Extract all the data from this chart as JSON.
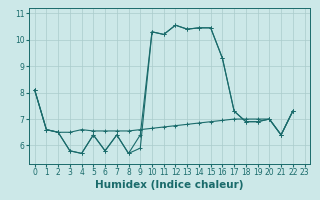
{
  "title": "",
  "xlabel": "Humidex (Indice chaleur)",
  "ylabel": "",
  "bg_color": "#cce8e8",
  "grid_color": "#aacccc",
  "line_color": "#1a6b6b",
  "series": [
    [
      8.1,
      6.6,
      6.5,
      5.8,
      5.7,
      6.4,
      5.8,
      6.4,
      5.7,
      5.9,
      10.3,
      10.2,
      10.55,
      10.4,
      10.45,
      10.45,
      9.3,
      7.3,
      6.9,
      6.9,
      7.0,
      6.4,
      7.3
    ],
    [
      8.1,
      6.6,
      6.5,
      5.8,
      5.7,
      6.4,
      5.8,
      6.4,
      5.7,
      6.4,
      10.3,
      10.2,
      10.55,
      10.4,
      10.45,
      10.45,
      9.3,
      7.3,
      6.9,
      6.9,
      7.0,
      6.4,
      7.3
    ],
    [
      8.1,
      6.6,
      6.5,
      6.5,
      6.6,
      6.55,
      6.55,
      6.55,
      6.55,
      6.6,
      6.65,
      6.7,
      6.75,
      6.8,
      6.85,
      6.9,
      6.95,
      7.0,
      7.0,
      7.0,
      7.0,
      6.4,
      7.3
    ]
  ],
  "xlim": [
    -0.5,
    23.5
  ],
  "ylim": [
    5.3,
    11.2
  ],
  "yticks": [
    6,
    7,
    8,
    9,
    10,
    11
  ],
  "xticks": [
    0,
    1,
    2,
    3,
    4,
    5,
    6,
    7,
    8,
    9,
    10,
    11,
    12,
    13,
    14,
    15,
    16,
    17,
    18,
    19,
    20,
    21,
    22,
    23
  ],
  "marker": "+",
  "markersize": 3,
  "linewidth": 0.8,
  "tick_fontsize": 5.5,
  "xlabel_fontsize": 7.5
}
